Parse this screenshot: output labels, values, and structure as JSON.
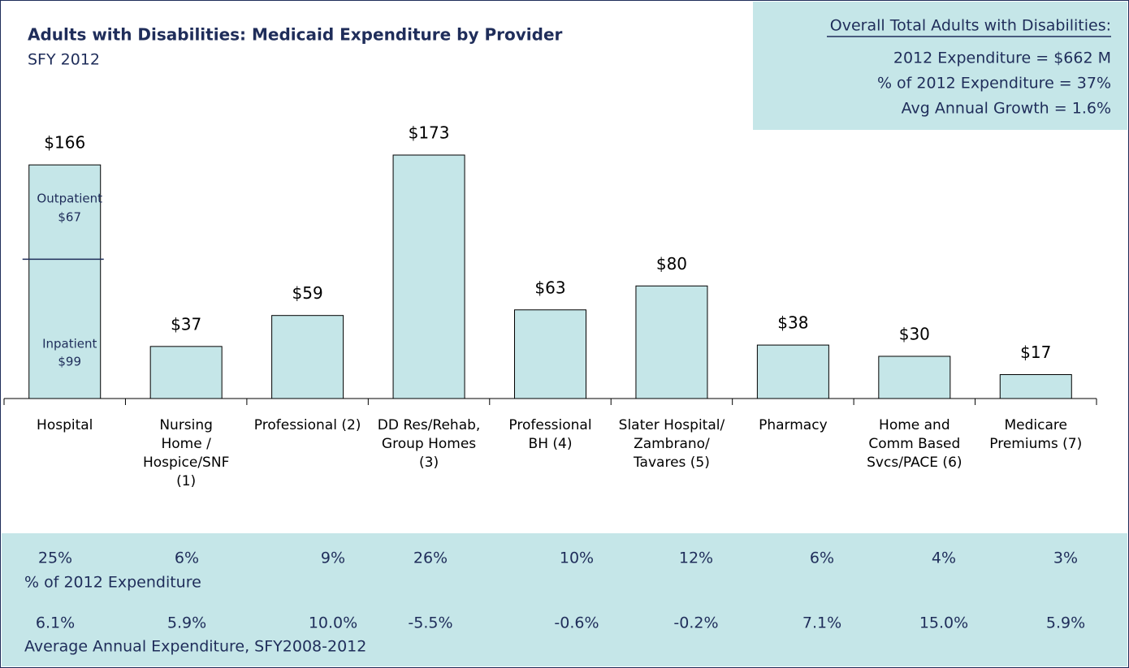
{
  "chart_data": {
    "type": "bar",
    "title": "Adults with Disabilities:  Medicaid Expenditure by Provider",
    "subtitle": "SFY 2012",
    "categories": [
      "Hospital",
      "Nursing\nHome /\nHospice/SNF\n(1)",
      "Professional (2)",
      "DD Res/Rehab,\nGroup Homes\n(3)",
      "Professional\nBH (4)",
      "Slater Hospital/\nZambrano/\nTavares (5)",
      "Pharmacy",
      "Home and\nComm Based\nSvcs/PACE (6)",
      "Medicare\nPremiums (7)"
    ],
    "values": [
      166,
      37,
      59,
      173,
      63,
      80,
      38,
      30,
      17
    ],
    "value_labels": [
      "$166",
      "$37",
      "$59",
      "$173",
      "$63",
      "$80",
      "$38",
      "$30",
      "$17"
    ],
    "color": "#c5e6e8",
    "hospital_segments": [
      {
        "name": "Outpatient",
        "value": 67,
        "label": "$67"
      },
      {
        "name": "Inpatient",
        "value": 99,
        "label": "$99"
      }
    ],
    "summary": {
      "title": "Overall Total Adults with Disabilities:",
      "lines": [
        "2012 Expenditure = $662 M",
        "% of 2012 Expenditure =    37%",
        "Avg Annual Growth =   1.6%"
      ]
    },
    "table": {
      "rows": [
        {
          "label": "% of  2012 Expenditure",
          "cells": [
            "25%",
            "6%",
            "9%",
            "26%",
            "10%",
            "12%",
            "6%",
            "4%",
            "3%"
          ]
        },
        {
          "label": "Average Annual Expenditure, SFY2008-2012",
          "cells": [
            "6.1%",
            "5.9%",
            "10.0%",
            "-5.5%",
            "-0.6%",
            "-0.2%",
            "7.1%",
            "15.0%",
            "5.9%"
          ]
        }
      ]
    }
  }
}
